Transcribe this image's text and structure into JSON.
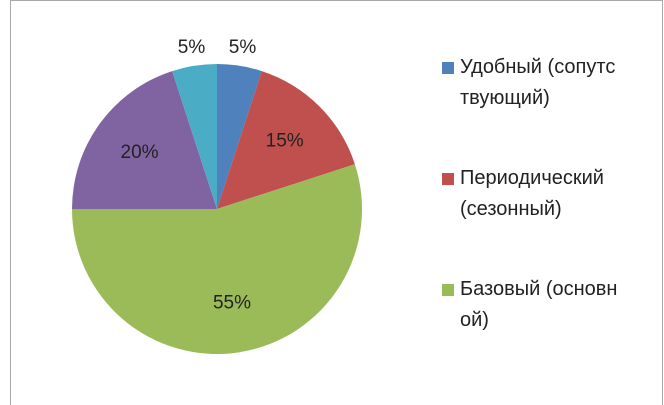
{
  "chart_data": {
    "type": "pie",
    "categories": [
      "Удобный (сопутствующий)",
      "Периодический (сезонный)",
      "Базовый (основной)",
      null,
      null
    ],
    "values": [
      5,
      15,
      55,
      20,
      5
    ],
    "value_labels": [
      "5%",
      "15%",
      "55%",
      "20%",
      "5%"
    ],
    "colors": [
      "#4f81bd",
      "#c0504d",
      "#9bbb59",
      "#8064a2",
      "#4bacc6"
    ],
    "legend": "right"
  }
}
